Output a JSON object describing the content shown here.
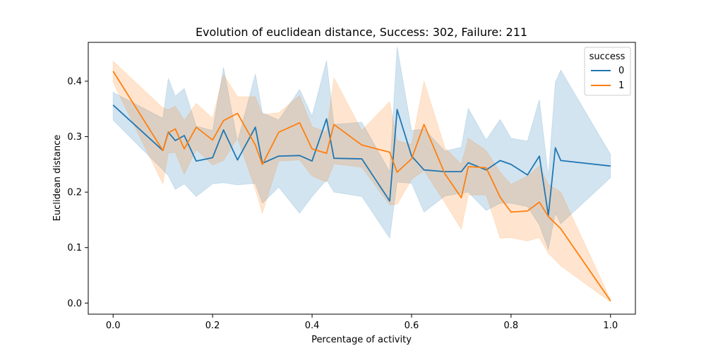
{
  "chart_data": {
    "type": "line",
    "title": "Evolution of euclidean distance, Success: 302, Failure: 211",
    "xlabel": "Percentage of activity",
    "ylabel": "Euclidean distance",
    "xlim": [
      -0.05,
      1.05
    ],
    "ylim": [
      -0.02,
      0.47
    ],
    "xticks": [
      0.0,
      0.2,
      0.4,
      0.6,
      0.8,
      1.0
    ],
    "xtick_labels": [
      "0.0",
      "0.2",
      "0.4",
      "0.6",
      "0.8",
      "1.0"
    ],
    "yticks": [
      0.0,
      0.1,
      0.2,
      0.3,
      0.4
    ],
    "ytick_labels": [
      "0.0",
      "0.1",
      "0.2",
      "0.3",
      "0.4"
    ],
    "grid": false,
    "legend": {
      "title": "success",
      "placement": "top-right"
    },
    "series": [
      {
        "name": "0",
        "color": "#1f77b4",
        "x": [
          0.0,
          0.1,
          0.111,
          0.125,
          0.143,
          0.167,
          0.2,
          0.222,
          0.25,
          0.286,
          0.3,
          0.333,
          0.375,
          0.4,
          0.429,
          0.444,
          0.5,
          0.556,
          0.571,
          0.6,
          0.625,
          0.667,
          0.7,
          0.714,
          0.75,
          0.778,
          0.8,
          0.833,
          0.857,
          0.875,
          0.889,
          0.9,
          1.0
        ],
        "y": [
          0.357,
          0.275,
          0.308,
          0.293,
          0.302,
          0.256,
          0.262,
          0.312,
          0.258,
          0.317,
          0.252,
          0.265,
          0.266,
          0.256,
          0.332,
          0.261,
          0.26,
          0.184,
          0.349,
          0.265,
          0.24,
          0.237,
          0.237,
          0.253,
          0.24,
          0.257,
          0.25,
          0.231,
          0.265,
          0.158,
          0.28,
          0.257,
          0.247
        ],
        "lower": [
          0.33,
          0.24,
          0.23,
          0.205,
          0.215,
          0.192,
          0.215,
          0.217,
          0.213,
          0.216,
          0.18,
          0.209,
          0.162,
          0.192,
          0.222,
          0.2,
          0.192,
          0.117,
          0.218,
          0.216,
          0.164,
          0.193,
          0.198,
          0.2,
          0.167,
          0.18,
          0.18,
          0.174,
          0.141,
          0.097,
          0.162,
          0.143,
          0.226
        ],
        "upper": [
          0.38,
          0.333,
          0.405,
          0.373,
          0.387,
          0.319,
          0.311,
          0.425,
          0.291,
          0.413,
          0.343,
          0.33,
          0.385,
          0.337,
          0.437,
          0.322,
          0.326,
          0.237,
          0.462,
          0.311,
          0.314,
          0.274,
          0.281,
          0.351,
          0.294,
          0.331,
          0.297,
          0.292,
          0.367,
          0.228,
          0.398,
          0.42,
          0.268
        ]
      },
      {
        "name": "1",
        "color": "#ff7f0e",
        "x": [
          0.0,
          0.1,
          0.111,
          0.125,
          0.143,
          0.167,
          0.2,
          0.222,
          0.25,
          0.286,
          0.3,
          0.333,
          0.375,
          0.4,
          0.429,
          0.444,
          0.5,
          0.556,
          0.571,
          0.6,
          0.625,
          0.667,
          0.7,
          0.714,
          0.75,
          0.778,
          0.8,
          0.833,
          0.857,
          0.875,
          0.9,
          1.0
        ],
        "y": [
          0.418,
          0.275,
          0.307,
          0.314,
          0.278,
          0.317,
          0.294,
          0.329,
          0.342,
          0.285,
          0.25,
          0.308,
          0.325,
          0.278,
          0.27,
          0.322,
          0.285,
          0.272,
          0.236,
          0.26,
          0.322,
          0.233,
          0.19,
          0.246,
          0.244,
          0.191,
          0.164,
          0.166,
          0.182,
          0.156,
          0.134,
          0.004
        ],
        "lower": [
          0.398,
          0.215,
          0.27,
          0.272,
          0.232,
          0.277,
          0.249,
          0.257,
          0.298,
          0.205,
          0.162,
          0.256,
          0.258,
          0.229,
          0.218,
          0.251,
          0.245,
          0.177,
          0.178,
          0.223,
          0.239,
          0.181,
          0.133,
          0.195,
          0.195,
          0.117,
          0.118,
          0.112,
          0.118,
          0.09,
          0.067,
          0.002
        ],
        "upper": [
          0.436,
          0.352,
          0.349,
          0.355,
          0.329,
          0.36,
          0.333,
          0.412,
          0.372,
          0.372,
          0.34,
          0.343,
          0.374,
          0.318,
          0.308,
          0.406,
          0.311,
          0.363,
          0.293,
          0.286,
          0.4,
          0.28,
          0.25,
          0.297,
          0.275,
          0.236,
          0.214,
          0.229,
          0.247,
          0.214,
          0.2,
          0.006
        ]
      }
    ]
  }
}
